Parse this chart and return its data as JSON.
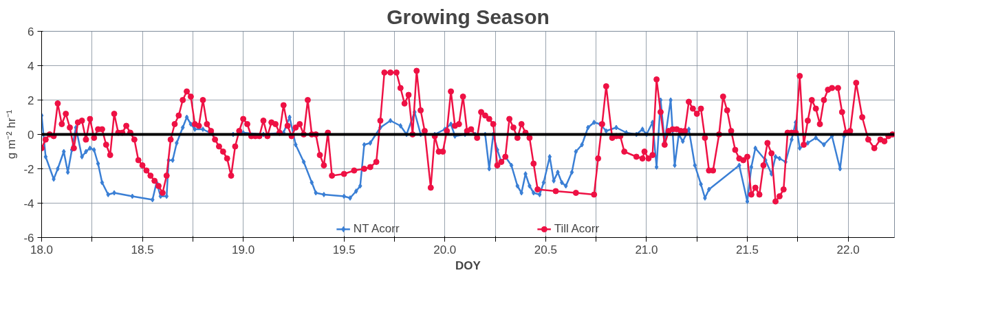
{
  "chart_data": {
    "type": "line",
    "title": "Growing Season",
    "xlabel": "DOY",
    "ylabel": "g m⁻² hr⁻¹",
    "xlim": [
      18.0,
      22.23
    ],
    "ylim": [
      -6,
      6
    ],
    "xticks": [
      {
        "value": 18.0,
        "label": "18.0"
      },
      {
        "value": 18.25,
        "label": null
      },
      {
        "value": 18.5,
        "label": "18.5"
      },
      {
        "value": 18.75,
        "label": null
      },
      {
        "value": 19.0,
        "label": "19.0"
      },
      {
        "value": 19.25,
        "label": null
      },
      {
        "value": 19.5,
        "label": "19.5"
      },
      {
        "value": 19.75,
        "label": null
      },
      {
        "value": 20.0,
        "label": "20.0"
      },
      {
        "value": 20.25,
        "label": null
      },
      {
        "value": 20.5,
        "label": "20.5"
      },
      {
        "value": 20.75,
        "label": null
      },
      {
        "value": 21.0,
        "label": "21.0"
      },
      {
        "value": 21.25,
        "label": null
      },
      {
        "value": 21.5,
        "label": "21.5"
      },
      {
        "value": 21.75,
        "label": null
      },
      {
        "value": 22.0,
        "label": "22.0"
      }
    ],
    "yticks": [
      -6,
      -4,
      -2,
      0,
      2,
      4,
      6
    ],
    "grid": true,
    "legend": "bottom",
    "line_style": "solid",
    "ref_lines": [
      {
        "axis": "y",
        "value": 0,
        "color": "#000000"
      }
    ],
    "series": [
      {
        "name": "NT Acorr",
        "color": "#3a7fd5",
        "marker": "diamond",
        "x": [
          18.0,
          18.02,
          18.06,
          18.08,
          18.11,
          18.13,
          18.15,
          18.17,
          18.2,
          18.22,
          18.24,
          18.26,
          18.28,
          18.3,
          18.33,
          18.36,
          18.45,
          18.55,
          18.57,
          18.59,
          18.62,
          18.63,
          18.65,
          18.67,
          18.7,
          18.72,
          18.74,
          18.76,
          18.8,
          18.85,
          18.95,
          19.0,
          19.1,
          19.2,
          19.23,
          19.26,
          19.3,
          19.34,
          19.36,
          19.4,
          19.5,
          19.53,
          19.56,
          19.58,
          19.6,
          19.63,
          19.68,
          19.73,
          19.78,
          19.81,
          19.85,
          19.88,
          19.95,
          20.0,
          20.03,
          20.05,
          20.1,
          20.15,
          20.2,
          20.22,
          20.24,
          20.26,
          20.28,
          20.3,
          20.33,
          20.36,
          20.38,
          20.4,
          20.42,
          20.44,
          20.47,
          20.49,
          20.52,
          20.54,
          20.56,
          20.58,
          20.6,
          20.63,
          20.65,
          20.68,
          20.71,
          20.74,
          20.77,
          20.8,
          20.85,
          20.9,
          20.95,
          20.98,
          21.0,
          21.03,
          21.05,
          21.07,
          21.09,
          21.12,
          21.14,
          21.16,
          21.18,
          21.21,
          21.24,
          21.27,
          21.29,
          21.31,
          21.46,
          21.5,
          21.52,
          21.54,
          21.59,
          21.62,
          21.64,
          21.66,
          21.69,
          21.72,
          21.74,
          21.76,
          21.8,
          21.84,
          21.88,
          21.92,
          21.96,
          21.98
        ],
        "values": [
          1.1,
          -1.3,
          -2.6,
          -2.0,
          -1.0,
          -2.2,
          -0.9,
          0.4,
          -1.3,
          -1.0,
          -0.8,
          -0.9,
          -1.7,
          -2.8,
          -3.5,
          -3.4,
          -3.6,
          -3.8,
          -2.8,
          -3.6,
          -3.6,
          -1.5,
          -1.5,
          -0.5,
          0.4,
          1.0,
          0.6,
          0.3,
          0.3,
          0.0,
          0.0,
          0.1,
          0.0,
          0.1,
          1.0,
          -0.6,
          -1.6,
          -2.8,
          -3.4,
          -3.5,
          -3.6,
          -3.7,
          -3.3,
          -3.0,
          -0.6,
          -0.5,
          0.4,
          0.8,
          0.5,
          0.0,
          1.3,
          0.0,
          0.0,
          0.3,
          0.6,
          -0.1,
          0.0,
          0.0,
          0.0,
          -2.0,
          0.0,
          -0.9,
          -1.6,
          -1.3,
          -1.8,
          -3.0,
          -3.4,
          -2.3,
          -3.0,
          -3.4,
          -3.5,
          -2.8,
          -1.3,
          -2.7,
          -2.2,
          -2.8,
          -3.0,
          -2.2,
          -1.0,
          -0.6,
          0.4,
          0.7,
          0.6,
          0.2,
          0.4,
          0.1,
          0.0,
          0.3,
          0.0,
          0.7,
          -1.9,
          2.0,
          -0.4,
          2.0,
          -1.8,
          0.0,
          -0.4,
          0.3,
          -1.8,
          -2.9,
          -3.7,
          -3.2,
          -1.8,
          -3.9,
          -1.9,
          -0.8,
          -1.5,
          -2.3,
          -1.3,
          -1.4,
          -1.6,
          -0.3,
          0.7,
          -0.8,
          -0.5,
          -0.2,
          -0.6,
          -0.1,
          -2.0,
          -0.1
        ]
      },
      {
        "name": "Till Acorr",
        "color": "#ee1144",
        "marker": "circle",
        "x": [
          18.0,
          18.02,
          18.04,
          18.06,
          18.08,
          18.1,
          18.12,
          18.14,
          18.16,
          18.18,
          18.2,
          18.22,
          18.24,
          18.26,
          18.28,
          18.3,
          18.32,
          18.34,
          18.36,
          18.38,
          18.4,
          18.42,
          18.44,
          18.46,
          18.48,
          18.5,
          18.52,
          18.54,
          18.56,
          18.58,
          18.6,
          18.62,
          18.64,
          18.66,
          18.68,
          18.7,
          18.72,
          18.74,
          18.76,
          18.78,
          18.8,
          18.82,
          18.84,
          18.86,
          18.88,
          18.9,
          18.92,
          18.94,
          18.96,
          18.98,
          19.0,
          19.02,
          19.04,
          19.06,
          19.08,
          19.1,
          19.12,
          19.14,
          19.16,
          19.18,
          19.2,
          19.22,
          19.24,
          19.26,
          19.28,
          19.3,
          19.32,
          19.34,
          19.36,
          19.38,
          19.4,
          19.42,
          19.44,
          19.5,
          19.55,
          19.6,
          19.63,
          19.66,
          19.68,
          19.7,
          19.73,
          19.76,
          19.78,
          19.8,
          19.82,
          19.84,
          19.86,
          19.88,
          19.9,
          19.93,
          19.95,
          19.97,
          19.99,
          20.01,
          20.03,
          20.05,
          20.07,
          20.09,
          20.11,
          20.13,
          20.16,
          20.18,
          20.2,
          20.22,
          20.24,
          20.26,
          20.28,
          20.3,
          20.32,
          20.34,
          20.36,
          20.38,
          20.4,
          20.42,
          20.44,
          20.46,
          20.55,
          20.65,
          20.74,
          20.76,
          20.78,
          20.8,
          20.83,
          20.85,
          20.87,
          20.89,
          20.95,
          20.98,
          20.99,
          21.01,
          21.03,
          21.05,
          21.07,
          21.09,
          21.11,
          21.13,
          21.15,
          21.17,
          21.19,
          21.21,
          21.23,
          21.25,
          21.27,
          21.29,
          21.31,
          21.33,
          21.36,
          21.38,
          21.4,
          21.42,
          21.44,
          21.46,
          21.48,
          21.5,
          21.52,
          21.54,
          21.56,
          21.58,
          21.6,
          21.62,
          21.64,
          21.66,
          21.68,
          21.7,
          21.72,
          21.74,
          21.76,
          21.78,
          21.8,
          21.82,
          21.84,
          21.86,
          21.88,
          21.9,
          21.92,
          21.95,
          21.97,
          21.99,
          22.01,
          22.04,
          22.07,
          22.1,
          22.13,
          22.16,
          22.18,
          22.2,
          22.22
        ],
        "values": [
          -0.8,
          -0.3,
          0.0,
          -0.1,
          1.8,
          0.6,
          1.2,
          0.4,
          -0.8,
          0.7,
          0.8,
          -0.3,
          0.9,
          -0.2,
          0.3,
          0.3,
          -0.6,
          -1.2,
          1.2,
          0.1,
          0.1,
          0.5,
          0.1,
          -0.3,
          -1.5,
          -1.8,
          -2.1,
          -2.4,
          -2.7,
          -3.0,
          -3.4,
          -2.4,
          -0.3,
          0.6,
          1.1,
          2.0,
          2.5,
          2.2,
          0.6,
          0.5,
          2.0,
          0.6,
          0.2,
          -0.3,
          -0.7,
          -1.0,
          -1.4,
          -2.4,
          -0.7,
          0.2,
          0.9,
          0.6,
          -0.1,
          -0.1,
          -0.1,
          0.8,
          -0.1,
          0.7,
          0.6,
          0.1,
          1.7,
          0.5,
          -0.1,
          0.4,
          0.6,
          0.0,
          2.0,
          0.0,
          0.0,
          -1.2,
          -1.8,
          0.1,
          -2.4,
          -2.3,
          -2.1,
          -2.0,
          -1.9,
          -1.6,
          0.8,
          3.6,
          3.6,
          3.6,
          2.7,
          1.8,
          2.3,
          0.0,
          3.7,
          1.4,
          0.2,
          -3.1,
          -0.1,
          -1.0,
          -1.0,
          0.2,
          2.5,
          0.5,
          0.6,
          2.2,
          0.2,
          0.3,
          -0.2,
          1.3,
          1.1,
          0.9,
          0.6,
          -1.8,
          -1.6,
          -1.3,
          0.9,
          0.4,
          -0.2,
          0.6,
          0.1,
          -0.2,
          -1.7,
          -3.2,
          -3.3,
          -3.4,
          -3.5,
          -1.4,
          0.6,
          2.8,
          -0.2,
          -0.1,
          -0.1,
          -1.0,
          -1.3,
          -1.4,
          -1.0,
          -1.4,
          -1.2,
          3.2,
          1.3,
          -0.6,
          0.2,
          0.3,
          0.3,
          0.2,
          0.2,
          1.9,
          1.5,
          1.2,
          1.5,
          -0.2,
          -2.1,
          -2.1,
          0.0,
          2.2,
          1.4,
          0.2,
          -0.9,
          -1.4,
          -1.5,
          -1.3,
          -3.5,
          -3.1,
          -3.5,
          -1.8,
          -0.5,
          -1.1,
          -3.9,
          -3.6,
          -3.2,
          0.1,
          0.1,
          0.1,
          3.4,
          -0.6,
          0.8,
          2.0,
          1.5,
          0.6,
          2.0,
          2.6,
          2.7,
          2.7,
          1.3,
          0.1,
          0.2,
          3.0,
          1.0,
          -0.3,
          -0.8,
          -0.3,
          -0.4,
          -0.1,
          0.0
        ]
      }
    ]
  }
}
